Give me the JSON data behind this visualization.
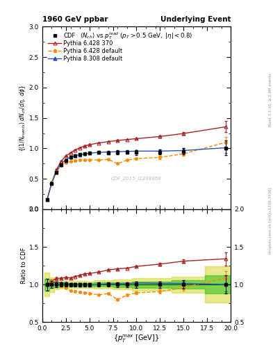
{
  "title_left": "1960 GeV ppbar",
  "title_right": "Underlying Event",
  "watermark": "CDF_2015_I1388868",
  "right_label": "mcplots.cern.ch [arXiv:1306.3436]",
  "right_label2": "Rivet 3.1.10, ≥ 2.9M events",
  "xlabel": "{p_{T}^{max} [GeV]}",
  "xlim": [
    0,
    20
  ],
  "ylim_main": [
    0,
    3.0
  ],
  "ylim_ratio": [
    0.5,
    2.0
  ],
  "cdf_x": [
    0.5,
    1.0,
    1.5,
    2.0,
    2.5,
    3.0,
    3.5,
    4.0,
    4.5,
    5.0,
    6.0,
    7.0,
    8.0,
    9.0,
    10.0,
    12.5,
    15.0,
    19.5
  ],
  "cdf_y": [
    0.155,
    0.42,
    0.6,
    0.73,
    0.8,
    0.855,
    0.88,
    0.9,
    0.91,
    0.925,
    0.935,
    0.93,
    0.935,
    0.94,
    0.935,
    0.94,
    0.95,
    1.01
  ],
  "cdf_yerr": [
    0.012,
    0.02,
    0.02,
    0.02,
    0.02,
    0.02,
    0.02,
    0.02,
    0.02,
    0.02,
    0.025,
    0.025,
    0.03,
    0.03,
    0.04,
    0.04,
    0.05,
    0.12
  ],
  "py6_370_x": [
    0.5,
    1.0,
    1.5,
    2.0,
    2.5,
    3.0,
    3.5,
    4.0,
    4.5,
    5.0,
    6.0,
    7.0,
    8.0,
    9.0,
    10.0,
    12.5,
    15.0,
    19.5
  ],
  "py6_370_y": [
    0.155,
    0.44,
    0.65,
    0.79,
    0.875,
    0.93,
    0.975,
    1.01,
    1.04,
    1.06,
    1.09,
    1.11,
    1.13,
    1.145,
    1.16,
    1.195,
    1.245,
    1.355
  ],
  "py6_370_yerr": [
    0.003,
    0.008,
    0.008,
    0.008,
    0.008,
    0.008,
    0.008,
    0.008,
    0.008,
    0.008,
    0.008,
    0.008,
    0.008,
    0.008,
    0.01,
    0.015,
    0.025,
    0.09
  ],
  "py6_def_x": [
    0.5,
    1.0,
    1.5,
    2.0,
    2.5,
    3.0,
    3.5,
    4.0,
    4.5,
    5.0,
    6.0,
    7.0,
    8.0,
    9.0,
    10.0,
    12.5,
    15.0,
    19.5
  ],
  "py6_def_y": [
    0.155,
    0.44,
    0.62,
    0.715,
    0.762,
    0.782,
    0.798,
    0.808,
    0.813,
    0.813,
    0.808,
    0.818,
    0.748,
    0.808,
    0.832,
    0.852,
    0.912,
    1.1
  ],
  "py6_def_yerr": [
    0.003,
    0.008,
    0.008,
    0.008,
    0.008,
    0.008,
    0.008,
    0.008,
    0.008,
    0.008,
    0.008,
    0.008,
    0.012,
    0.012,
    0.015,
    0.025,
    0.035,
    0.09
  ],
  "py8_def_x": [
    0.5,
    1.0,
    1.5,
    2.0,
    2.5,
    3.0,
    3.5,
    4.0,
    4.5,
    5.0,
    6.0,
    7.0,
    8.0,
    9.0,
    10.0,
    12.5,
    15.0,
    19.5
  ],
  "py8_def_y": [
    0.155,
    0.43,
    0.62,
    0.745,
    0.815,
    0.855,
    0.88,
    0.895,
    0.91,
    0.92,
    0.935,
    0.94,
    0.945,
    0.95,
    0.955,
    0.955,
    0.965,
    1.01
  ],
  "py8_def_yerr": [
    0.003,
    0.008,
    0.008,
    0.008,
    0.008,
    0.008,
    0.008,
    0.008,
    0.008,
    0.008,
    0.008,
    0.008,
    0.008,
    0.01,
    0.012,
    0.018,
    0.025,
    0.09
  ],
  "cdf_color": "#000000",
  "py6_370_color": "#aa2222",
  "py6_def_color": "#ff8800",
  "py8_def_color": "#2255bb",
  "band_green_color": "#00bb00",
  "band_yellow_color": "#cccc00",
  "band_green_alpha": 0.45,
  "band_yellow_alpha": 0.45
}
